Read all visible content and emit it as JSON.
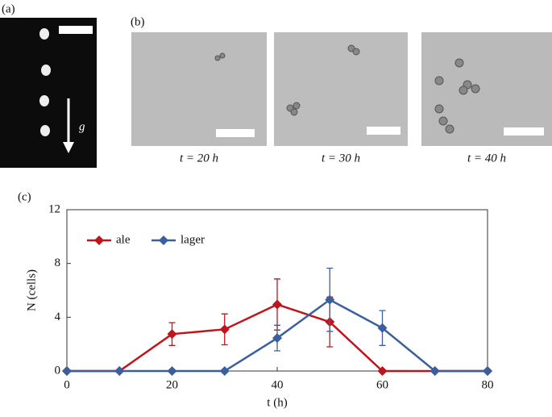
{
  "panels": {
    "a": "(a)",
    "b": "(b)",
    "gravity": "g",
    "captions": [
      "t = 20 h",
      "t = 30 h",
      "t = 40 h"
    ]
  },
  "chart_data": {
    "type": "line",
    "panel_label": "(c)",
    "x_label": "t (h)",
    "y_label": "N (cells)",
    "x": [
      0,
      10,
      20,
      30,
      40,
      50,
      60,
      70,
      80
    ],
    "series": [
      {
        "name": "ale",
        "color": "#c0141c",
        "values": [
          0,
          0,
          2.75,
          3.1,
          4.95,
          3.65,
          0,
          0,
          0
        ],
        "errors": [
          null,
          null,
          0.85,
          1.15,
          1.9,
          1.85,
          null,
          null,
          null
        ]
      },
      {
        "name": "lager",
        "color": "#3a5f9e",
        "values": [
          0,
          0,
          0,
          0,
          2.45,
          5.3,
          3.2,
          0,
          0
        ],
        "errors": [
          null,
          null,
          null,
          null,
          0.95,
          2.35,
          1.3,
          null,
          null
        ]
      }
    ],
    "xlim": [
      0,
      80
    ],
    "ylim": [
      0,
      12
    ],
    "xticks": [
      0,
      20,
      40,
      60,
      80
    ],
    "yticks": [
      0,
      4,
      8,
      12
    ],
    "legend": "upper left"
  }
}
